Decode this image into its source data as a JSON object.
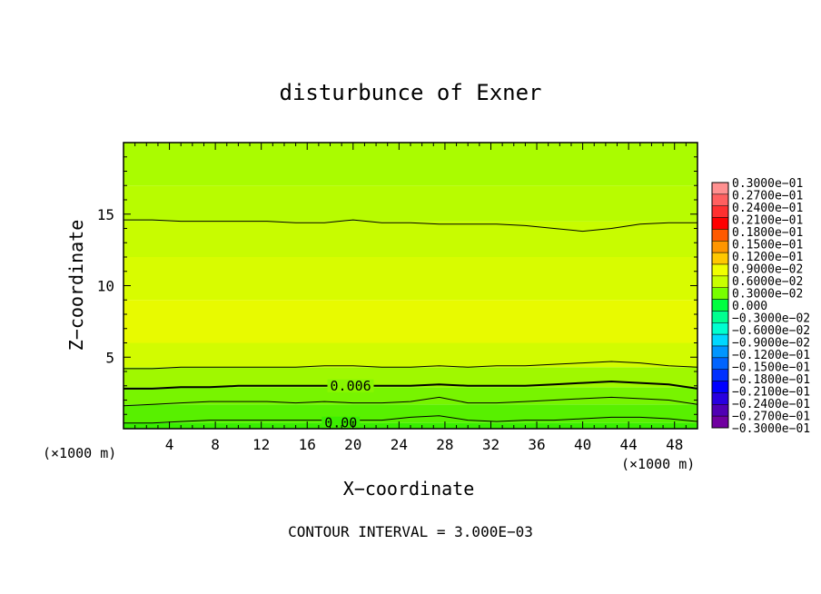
{
  "chart_data": {
    "type": "heatmap",
    "title": "disturbunce of Exner",
    "xlabel": "X−coordinate",
    "ylabel": "Z−coordinate",
    "x_unit_label": "(×1000 m)",
    "x_unit_label_right": "(×1000 m)",
    "footer": "CONTOUR INTERVAL = 3.000E−03",
    "xlim": [
      0,
      50
    ],
    "ylim": [
      0,
      20
    ],
    "x_ticks": [
      4,
      8,
      12,
      16,
      20,
      24,
      28,
      32,
      36,
      40,
      44,
      48
    ],
    "y_ticks": [
      5,
      10,
      15
    ],
    "colorbar": {
      "range": [
        -0.03,
        0.03
      ],
      "labels": [
        "0.3000e−01",
        "0.2700e−01",
        "0.2400e−01",
        "0.2100e−01",
        "0.1800e−01",
        "0.1500e−01",
        "0.1200e−01",
        "0.9000e−02",
        "0.6000e−02",
        "0.3000e−02",
        "0.000",
        "−0.3000e−02",
        "−0.6000e−02",
        "−0.9000e−02",
        "−0.1200e−01",
        "−0.1500e−01",
        "−0.1800e−01",
        "−0.2100e−01",
        "−0.2400e−01",
        "−0.2700e−01",
        "−0.3000e−01"
      ],
      "colors": [
        "#ff9090",
        "#ff6060",
        "#ff3030",
        "#ff0000",
        "#ff5a00",
        "#ff9600",
        "#ffc800",
        "#f0ff00",
        "#c8ff00",
        "#78ff00",
        "#00ff40",
        "#00ff90",
        "#00ffd0",
        "#00d8ff",
        "#0096ff",
        "#0064ff",
        "#0030ff",
        "#0000ff",
        "#2800e0",
        "#5000b4",
        "#7000a0"
      ]
    },
    "contour_labels": [
      {
        "text": "0.006",
        "x": 18.0,
        "z": 3.0
      },
      {
        "text": "0.00",
        "x": 17.5,
        "z": 0.4
      }
    ],
    "contours": [
      {
        "z": [
          14.6,
          14.6,
          14.5,
          14.5,
          14.5,
          14.5,
          14.4,
          14.4,
          14.6,
          14.4,
          14.4,
          14.3,
          14.3,
          14.3,
          14.2,
          14.0,
          13.8,
          14.0,
          14.3,
          14.4,
          14.4
        ]
      },
      {
        "z": [
          4.2,
          4.2,
          4.3,
          4.3,
          4.3,
          4.3,
          4.3,
          4.4,
          4.4,
          4.3,
          4.3,
          4.4,
          4.3,
          4.4,
          4.4,
          4.5,
          4.6,
          4.7,
          4.6,
          4.4,
          4.3
        ]
      },
      {
        "z": [
          2.8,
          2.8,
          2.9,
          2.9,
          3.0,
          3.0,
          3.0,
          3.0,
          3.0,
          3.0,
          3.0,
          3.1,
          3.0,
          3.0,
          3.0,
          3.1,
          3.2,
          3.3,
          3.2,
          3.1,
          2.8
        ]
      },
      {
        "z": [
          1.6,
          1.7,
          1.8,
          1.9,
          1.9,
          1.9,
          1.8,
          1.9,
          1.8,
          1.8,
          1.9,
          2.2,
          1.8,
          1.8,
          1.9,
          2.0,
          2.1,
          2.2,
          2.1,
          2.0,
          1.7
        ]
      },
      {
        "z": [
          0.4,
          0.4,
          0.5,
          0.6,
          0.6,
          0.6,
          0.6,
          0.6,
          0.6,
          0.6,
          0.8,
          0.9,
          0.6,
          0.5,
          0.6,
          0.6,
          0.7,
          0.8,
          0.8,
          0.7,
          0.5
        ]
      }
    ],
    "field_bands": [
      {
        "z": [
          0,
          0.4
        ],
        "color": "#38ee00"
      },
      {
        "z": [
          0.4,
          1.7
        ],
        "color": "#58f000"
      },
      {
        "z": [
          1.7,
          2.9
        ],
        "color": "#78f400"
      },
      {
        "z": [
          2.9,
          4.3
        ],
        "color": "#a0f800"
      },
      {
        "z": [
          4.3,
          6.0
        ],
        "color": "#d2fc00"
      },
      {
        "z": [
          6.0,
          9.0
        ],
        "color": "#e8fa00"
      },
      {
        "z": [
          9.0,
          12.0
        ],
        "color": "#d8fc00"
      },
      {
        "z": [
          12.0,
          14.5
        ],
        "color": "#c8fc00"
      },
      {
        "z": [
          14.5,
          17.0
        ],
        "color": "#b8fc00"
      },
      {
        "z": [
          17.0,
          20.0
        ],
        "color": "#aafc00"
      }
    ]
  }
}
